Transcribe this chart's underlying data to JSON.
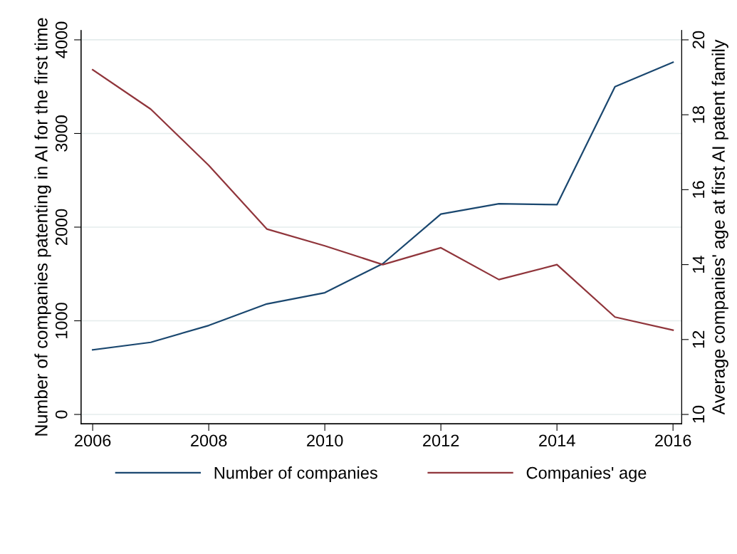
{
  "chart_data": {
    "type": "line",
    "x": [
      2006,
      2007,
      2008,
      2009,
      2010,
      2011,
      2012,
      2013,
      2014,
      2015,
      2016
    ],
    "series": [
      {
        "name": "Number of companies",
        "color": "#1a476f",
        "values": [
          690,
          770,
          950,
          1180,
          1300,
          1610,
          2140,
          2250,
          2240,
          3500,
          3760
        ]
      },
      {
        "name": "Companies' age",
        "color": "#90353b",
        "axis": "y2",
        "values": [
          19.2,
          18.15,
          16.65,
          14.95,
          14.5,
          14.0,
          14.45,
          13.6,
          14.0,
          12.6,
          12.25
        ]
      }
    ],
    "ylabel": "Number of companies patenting in AI for the first time",
    "y2label": "Average companies' age at first AI patent family",
    "xlim": [
      2005.8,
      2016.15
    ],
    "xticks": [
      2006,
      2008,
      2010,
      2012,
      2014,
      2016
    ],
    "ylim": [
      -100,
      4100
    ],
    "yticks": [
      0,
      1000,
      2000,
      3000,
      4000
    ],
    "y2lim": [
      9.75,
      20.25
    ],
    "y2ticks": [
      10,
      12,
      14,
      16,
      18,
      20
    ],
    "grid": "y",
    "legend": "bottom",
    "marker": "none",
    "line_style": "solid"
  }
}
